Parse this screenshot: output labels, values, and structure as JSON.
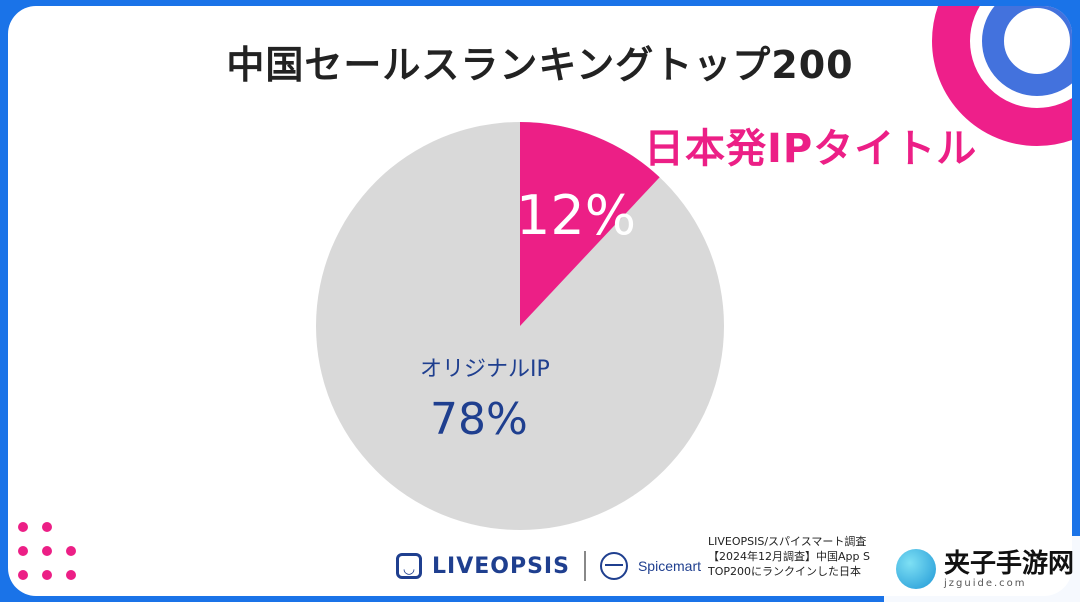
{
  "chart_data": {
    "type": "pie",
    "title": "中国セールスランキングトップ200",
    "slices": [
      {
        "label": "日本発IPタイトル",
        "value_label": "12%",
        "value": 12,
        "color": "#ec1f86"
      },
      {
        "label": "オリジナルIP",
        "value_label": "78%",
        "value": 78,
        "color": "#d9d9d9"
      }
    ],
    "start_angle_deg": 0,
    "label_color_highlight": "#ffffff",
    "label_color_base": "#1f3f8f"
  },
  "branding": {
    "liveopsis": "LIVEOPSIS",
    "spicemart": "Spicemart"
  },
  "source_lines": [
    "LIVEOPSIS/スパイスマート調査",
    "【2024年12月調査】中国App S",
    "TOP200にランクインした日本"
  ],
  "watermark": {
    "name": "夹子手游网",
    "url": "jzguide.com"
  }
}
